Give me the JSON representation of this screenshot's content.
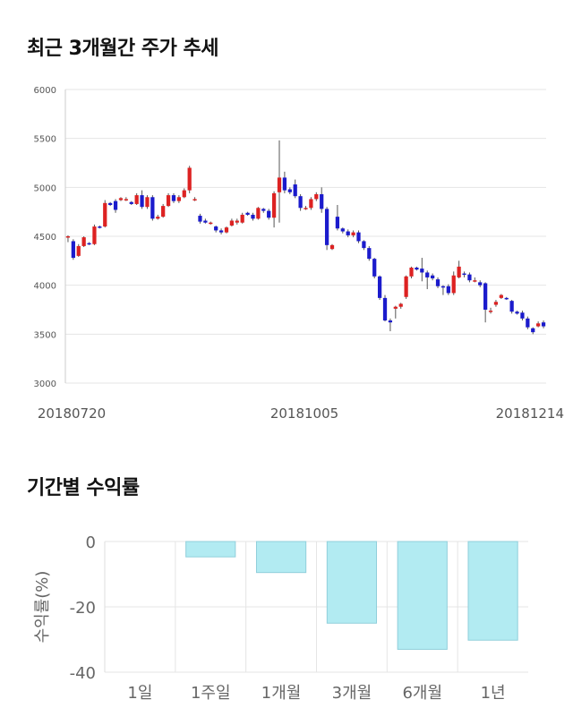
{
  "section1": {
    "title": "최근 3개월간 주가 추세"
  },
  "section2": {
    "title": "기간별 수익률"
  },
  "chart_data": [
    {
      "type": "candlestick",
      "title": "최근 3개월간 주가 추세",
      "ylim": [
        3000,
        6000
      ],
      "yticks": [
        3000,
        3500,
        4000,
        4500,
        5000,
        5500,
        6000
      ],
      "xticks": [
        "20180720",
        "20181005",
        "20181214"
      ],
      "grid": true,
      "colors": {
        "up": "#dd2222",
        "down": "#1b1bcc",
        "wick": "#555555",
        "grid": "#e5e5e5"
      },
      "candles": [
        [
          4500,
          4500,
          4450,
          4440,
          4510
        ],
        [
          4450,
          4280,
          4460,
          4260,
          4470
        ],
        [
          4300,
          4400,
          4310,
          4290,
          4420
        ],
        [
          4400,
          4490,
          4410,
          4390,
          4500
        ],
        [
          4430,
          4420,
          4420,
          4410,
          4440
        ],
        [
          4420,
          4600,
          4430,
          4410,
          4620
        ],
        [
          4600,
          4590,
          4590,
          4580,
          4610
        ],
        [
          4600,
          4840,
          4610,
          4590,
          4870
        ],
        [
          4840,
          4820,
          4830,
          4810,
          4850
        ],
        [
          4860,
          4770,
          4860,
          4740,
          4880
        ],
        [
          4870,
          4890,
          4880,
          4860,
          4900
        ],
        [
          4880,
          4880,
          4870,
          4860,
          4900
        ],
        [
          4850,
          4830,
          4830,
          4820,
          4860
        ],
        [
          4830,
          4920,
          4840,
          4820,
          4940
        ],
        [
          4920,
          4800,
          4950,
          4780,
          4970
        ],
        [
          4800,
          4900,
          4810,
          4780,
          4920
        ],
        [
          4900,
          4680,
          4900,
          4660,
          4920
        ],
        [
          4680,
          4700,
          4690,
          4670,
          4720
        ],
        [
          4700,
          4810,
          4710,
          4690,
          4830
        ],
        [
          4810,
          4920,
          4820,
          4800,
          4940
        ],
        [
          4920,
          4860,
          4900,
          4840,
          4940
        ],
        [
          4860,
          4900,
          4870,
          4840,
          4920
        ],
        [
          4900,
          4970,
          4910,
          4890,
          4990
        ],
        [
          4970,
          5200,
          4970,
          4940,
          5220
        ],
        [
          4870,
          4880,
          4870,
          4860,
          4900
        ],
        [
          4710,
          4650,
          4720,
          4630,
          4730
        ],
        [
          4660,
          4640,
          4660,
          4630,
          4680
        ],
        [
          4640,
          4640,
          4630,
          4620,
          4650
        ],
        [
          4600,
          4560,
          4600,
          4540,
          4610
        ],
        [
          4560,
          4540,
          4570,
          4520,
          4580
        ],
        [
          4540,
          4590,
          4550,
          4530,
          4600
        ],
        [
          4610,
          4660,
          4620,
          4600,
          4680
        ],
        [
          4640,
          4660,
          4630,
          4620,
          4680
        ],
        [
          4640,
          4720,
          4650,
          4630,
          4740
        ],
        [
          4740,
          4720,
          4730,
          4710,
          4750
        ],
        [
          4720,
          4680,
          4720,
          4660,
          4740
        ],
        [
          4680,
          4790,
          4690,
          4670,
          4800
        ],
        [
          4780,
          4760,
          4770,
          4740,
          4790
        ],
        [
          4760,
          4690,
          4760,
          4670,
          4780
        ],
        [
          4690,
          4940,
          4690,
          4590,
          4960
        ],
        [
          4950,
          5100,
          4950,
          4640,
          5480
        ],
        [
          5100,
          4970,
          5100,
          4940,
          5160
        ],
        [
          4980,
          4950,
          4970,
          4930,
          5000
        ],
        [
          5030,
          4910,
          5040,
          4890,
          5080
        ],
        [
          4910,
          4790,
          4920,
          4760,
          4930
        ],
        [
          4790,
          4790,
          4780,
          4770,
          4810
        ],
        [
          4790,
          4880,
          4790,
          4770,
          4900
        ],
        [
          4880,
          4930,
          4880,
          4860,
          4950
        ],
        [
          4930,
          4780,
          4930,
          4740,
          5000
        ],
        [
          4780,
          4410,
          4790,
          4360,
          4800
        ],
        [
          4370,
          4410,
          4420,
          4360,
          4420
        ],
        [
          4700,
          4580,
          4700,
          4560,
          4820
        ],
        [
          4580,
          4550,
          4570,
          4530,
          4590
        ],
        [
          4550,
          4510,
          4540,
          4490,
          4570
        ],
        [
          4510,
          4540,
          4520,
          4490,
          4560
        ],
        [
          4540,
          4450,
          4540,
          4430,
          4560
        ],
        [
          4450,
          4380,
          4450,
          4360,
          4460
        ],
        [
          4380,
          4270,
          4390,
          4250,
          4400
        ],
        [
          4270,
          4090,
          4270,
          4070,
          4280
        ],
        [
          4090,
          3870,
          4090,
          3850,
          4100
        ],
        [
          3870,
          3640,
          3870,
          3630,
          3900
        ],
        [
          3640,
          3620,
          3630,
          3530,
          3660
        ],
        [
          3760,
          3780,
          3770,
          3660,
          3790
        ],
        [
          3780,
          3810,
          3790,
          3760,
          3820
        ],
        [
          3880,
          4090,
          3880,
          3860,
          4100
        ],
        [
          4090,
          4180,
          4090,
          4070,
          4190
        ],
        [
          4180,
          4160,
          4170,
          4150,
          4190
        ],
        [
          4170,
          4130,
          4170,
          4040,
          4280
        ],
        [
          4130,
          4080,
          4120,
          3960,
          4150
        ],
        [
          4100,
          4070,
          4110,
          4050,
          4120
        ],
        [
          4060,
          3990,
          4060,
          3970,
          4080
        ],
        [
          3990,
          3980,
          3990,
          3900,
          4000
        ],
        [
          3990,
          3920,
          3990,
          3900,
          4010
        ],
        [
          3920,
          4100,
          3930,
          3900,
          4140
        ],
        [
          4080,
          4190,
          4090,
          4070,
          4250
        ],
        [
          4120,
          4110,
          4120,
          4080,
          4140
        ],
        [
          4110,
          4050,
          4110,
          4030,
          4130
        ],
        [
          4050,
          4050,
          4060,
          4030,
          4080
        ],
        [
          4030,
          4000,
          4030,
          3980,
          4050
        ],
        [
          4020,
          3750,
          4020,
          3620,
          4030
        ],
        [
          3730,
          3740,
          3750,
          3710,
          3770
        ],
        [
          3800,
          3830,
          3810,
          3780,
          3850
        ],
        [
          3870,
          3900,
          3880,
          3860,
          3910
        ],
        [
          3870,
          3860,
          3870,
          3850,
          3880
        ],
        [
          3840,
          3730,
          3840,
          3710,
          3850
        ],
        [
          3730,
          3710,
          3720,
          3700,
          3740
        ],
        [
          3720,
          3660,
          3720,
          3640,
          3740
        ],
        [
          3660,
          3570,
          3670,
          3550,
          3680
        ],
        [
          3560,
          3520,
          3560,
          3500,
          3570
        ],
        [
          3580,
          3610,
          3590,
          3570,
          3630
        ],
        [
          3620,
          3580,
          3610,
          3560,
          3640
        ]
      ]
    },
    {
      "type": "bar",
      "title": "기간별 수익률",
      "ylabel": "수익률(%)",
      "categories": [
        "1일",
        "1주일",
        "1개월",
        "3개월",
        "6개월",
        "1년"
      ],
      "values": [
        0,
        -4.7,
        -9.5,
        -25.0,
        -33.0,
        -30.2
      ],
      "ylim": [
        -40,
        0
      ],
      "yticks": [
        0,
        -20,
        -40
      ],
      "grid": true,
      "colors": {
        "bar": "#b2ebf2",
        "bar_edge": "#90cfdb",
        "grid": "#e5e5e5"
      }
    }
  ]
}
